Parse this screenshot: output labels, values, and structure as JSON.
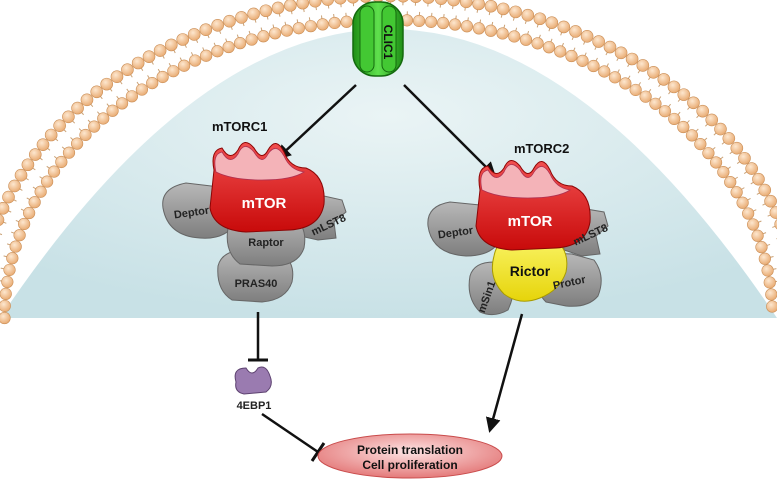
{
  "channel": {
    "label": "CLIC1"
  },
  "mtorc1": {
    "title": "mTORC1",
    "core": "mTOR",
    "subunits": {
      "deptor": "Deptor",
      "mlst8": "mLST8",
      "raptor": "Raptor",
      "pras40": "PRAS40"
    }
  },
  "mtorc2": {
    "title": "mTORC2",
    "core": "mTOR",
    "subunits": {
      "deptor": "Deptor",
      "mlst8": "mLST8",
      "rictor": "Rictor",
      "msin1": "mSin1",
      "protor": "Protor"
    }
  },
  "effector": {
    "label": "4EBP1"
  },
  "outcome": {
    "line1": "Protein translation",
    "line2": "Cell proliferation"
  },
  "colors": {
    "cytoplasm": "#d7e9ec",
    "lipid_head": "#f3c89e",
    "mtor": "#e01010",
    "mtor_top": "#f4b3b8",
    "subunit": "#9a9a9a",
    "rictor": "#f2ea18",
    "effector": "#9a7bb0",
    "channel": "#34c026",
    "outcome": "#f08a8a"
  }
}
